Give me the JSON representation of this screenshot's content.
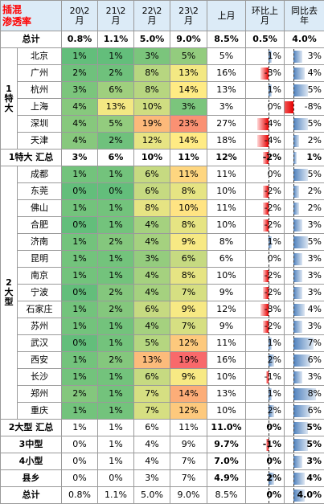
{
  "chart_data": {
    "type": "table",
    "corner": {
      "line1": "插混",
      "line2": "渗透率"
    },
    "columns": [
      {
        "line1": "20\\2",
        "line2": "月"
      },
      {
        "line1": "21\\2",
        "line2": "月"
      },
      {
        "line1": "22\\2",
        "line2": "月"
      },
      {
        "line1": "23\\2",
        "line2": "月"
      },
      {
        "line1": "上月",
        "line2": ""
      },
      {
        "line1": "环比上",
        "line2": "月"
      },
      {
        "line1": "同比去",
        "line2": "年"
      }
    ],
    "total_top": {
      "label": "总计",
      "values": [
        "0.8%",
        "1.1%",
        "5.0%",
        "9.0%",
        "8.5%",
        "0.5%",
        "4.0%"
      ]
    },
    "group1": {
      "category_lines": [
        "1",
        "特",
        "大"
      ],
      "rows": [
        {
          "city": "北京",
          "values": [
            "1%",
            "1%",
            "3%",
            "5%",
            "5%",
            "1%",
            "3%"
          ],
          "mom": 1,
          "yoy": 3
        },
        {
          "city": "广州",
          "values": [
            "2%",
            "2%",
            "8%",
            "13%",
            "16%",
            "-3%",
            "4%"
          ],
          "mom": -3,
          "yoy": 4
        },
        {
          "city": "杭州",
          "values": [
            "3%",
            "6%",
            "8%",
            "14%",
            "13%",
            "1%",
            "5%"
          ],
          "mom": 1,
          "yoy": 5
        },
        {
          "city": "上海",
          "values": [
            "4%",
            "13%",
            "10%",
            "3%",
            "3%",
            "0%",
            "-8%"
          ],
          "mom": 0,
          "yoy": -8
        },
        {
          "city": "深圳",
          "values": [
            "4%",
            "5%",
            "19%",
            "23%",
            "27%",
            "-4%",
            "5%"
          ],
          "mom": -4,
          "yoy": 5
        },
        {
          "city": "天津",
          "values": [
            "4%",
            "2%",
            "12%",
            "14%",
            "18%",
            "-4%",
            "2%"
          ],
          "mom": -4,
          "yoy": 2
        }
      ]
    },
    "subtotal1": {
      "label": "1特大 汇总",
      "values": [
        "3%",
        "6%",
        "10%",
        "11%",
        "12%",
        "-2%",
        "1%"
      ]
    },
    "group2": {
      "category_lines": [
        "2",
        "大",
        "型"
      ],
      "rows": [
        {
          "city": "成都",
          "values": [
            "1%",
            "1%",
            "6%",
            "11%",
            "11%",
            "0%",
            "5%"
          ],
          "mom": 0,
          "yoy": 5
        },
        {
          "city": "东莞",
          "values": [
            "0%",
            "0%",
            "6%",
            "8%",
            "10%",
            "-2%",
            "2%"
          ],
          "mom": -2,
          "yoy": 2
        },
        {
          "city": "佛山",
          "values": [
            "1%",
            "1%",
            "8%",
            "10%",
            "11%",
            "-2%",
            "2%"
          ],
          "mom": -2,
          "yoy": 2
        },
        {
          "city": "合肥",
          "values": [
            "0%",
            "1%",
            "4%",
            "8%",
            "10%",
            "-2%",
            "3%"
          ],
          "mom": -2,
          "yoy": 3
        },
        {
          "city": "济南",
          "values": [
            "1%",
            "2%",
            "4%",
            "9%",
            "8%",
            "1%",
            "5%"
          ],
          "mom": 1,
          "yoy": 5
        },
        {
          "city": "昆明",
          "values": [
            "1%",
            "1%",
            "3%",
            "6%",
            "6%",
            "0%",
            "3%"
          ],
          "mom": 0,
          "yoy": 3
        },
        {
          "city": "南京",
          "values": [
            "1%",
            "1%",
            "4%",
            "8%",
            "10%",
            "-2%",
            "3%"
          ],
          "mom": -2,
          "yoy": 3
        },
        {
          "city": "宁波",
          "values": [
            "0%",
            "2%",
            "4%",
            "7%",
            "9%",
            "-2%",
            "3%"
          ],
          "mom": -2,
          "yoy": 3
        },
        {
          "city": "石家庄",
          "values": [
            "1%",
            "2%",
            "6%",
            "9%",
            "12%",
            "-3%",
            "4%"
          ],
          "mom": -3,
          "yoy": 4
        },
        {
          "city": "苏州",
          "values": [
            "1%",
            "1%",
            "4%",
            "7%",
            "9%",
            "-2%",
            "3%"
          ],
          "mom": -2,
          "yoy": 3
        },
        {
          "city": "武汉",
          "values": [
            "0%",
            "1%",
            "5%",
            "12%",
            "11%",
            "1%",
            "7%"
          ],
          "mom": 1,
          "yoy": 7
        },
        {
          "city": "西安",
          "values": [
            "1%",
            "2%",
            "13%",
            "19%",
            "16%",
            "2%",
            "6%"
          ],
          "mom": 2,
          "yoy": 6
        },
        {
          "city": "长沙",
          "values": [
            "1%",
            "1%",
            "6%",
            "9%",
            "10%",
            "-1%",
            "3%"
          ],
          "mom": -1,
          "yoy": 3
        },
        {
          "city": "郑州",
          "values": [
            "2%",
            "1%",
            "7%",
            "14%",
            "13%",
            "1%",
            "8%"
          ],
          "mom": 1,
          "yoy": 8
        },
        {
          "city": "重庆",
          "values": [
            "1%",
            "1%",
            "7%",
            "12%",
            "10%",
            "2%",
            "6%"
          ],
          "mom": 2,
          "yoy": 6
        }
      ]
    },
    "bottom_rows": [
      {
        "label": "2大型 汇总",
        "values": [
          "1%",
          "1%",
          "6%",
          "11%",
          "11.0%",
          "0%",
          "5%"
        ],
        "bold_last_cols": true,
        "mom": 0,
        "yoy": 5
      },
      {
        "label": "3中型",
        "values": [
          "0%",
          "1%",
          "4%",
          "9%",
          "9.7%",
          "-1%",
          "5%"
        ],
        "bold_last_cols": true,
        "mom": -1,
        "yoy": 5
      },
      {
        "label": "4小型",
        "values": [
          "0%",
          "1%",
          "4%",
          "7%",
          "7.0%",
          "0%",
          "3%"
        ],
        "bold_last_cols": true,
        "mom": 0,
        "yoy": 3
      },
      {
        "label": "县乡",
        "values": [
          "0%",
          "0%",
          "3%",
          "7%",
          "4.9%",
          "2%",
          "4%"
        ],
        "bold_last_cols": true,
        "mom": 2,
        "yoy": 4
      },
      {
        "label": "总计",
        "values": [
          "0.8%",
          "1.1%",
          "5.0%",
          "9.0%",
          "8.5%",
          "0%",
          "4.0%"
        ],
        "bold_last_cols": false,
        "mom": 0,
        "yoy": 4
      }
    ],
    "heat_colors": {
      "low": "#63be7b",
      "mid": "#ffeb84",
      "high": "#f8696b"
    },
    "bar_colors": {
      "negative": "#ff0000",
      "positive": "#4f81bd"
    },
    "header_bg": "#dcebf7",
    "corner_text_color": "#ff0000"
  }
}
